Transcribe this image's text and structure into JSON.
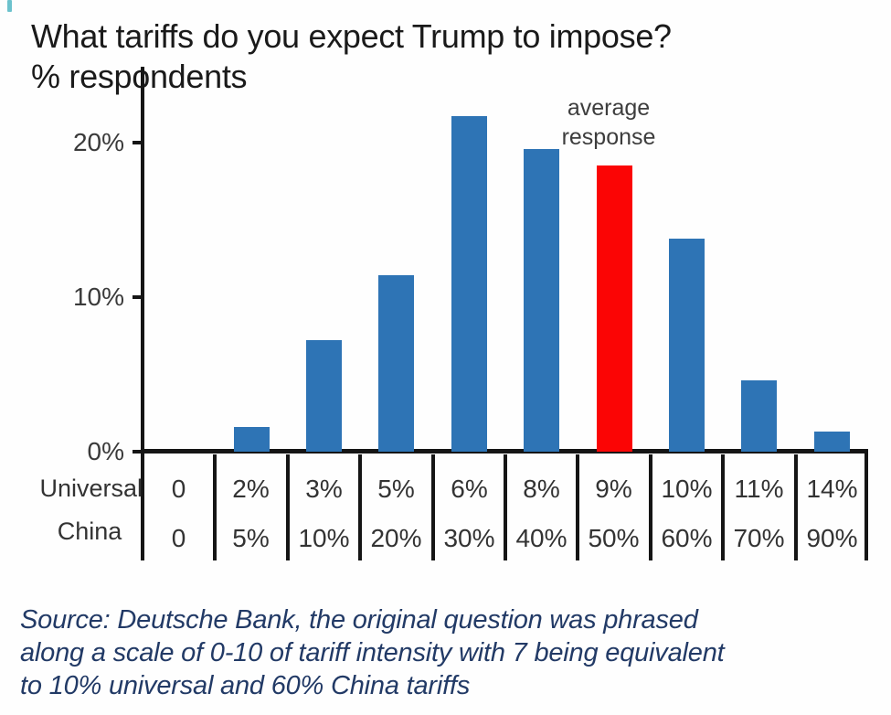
{
  "header": {
    "title": "What tariffs do you expect Trump to impose?",
    "subtitle": "% respondents"
  },
  "annotation": {
    "line1": "average",
    "line2": "response"
  },
  "chart_data": {
    "type": "bar",
    "title": "What tariffs do you expect Trump to impose?",
    "ylabel": "% respondents",
    "xlabel": "",
    "ylim": [
      0,
      23
    ],
    "grid": false,
    "legend_position": "none",
    "y_ticks": [
      {
        "label": "0%",
        "value": 0
      },
      {
        "label": "10%",
        "value": 10
      },
      {
        "label": "20%",
        "value": 20
      }
    ],
    "x_rows": [
      {
        "label": "Universal",
        "values": [
          "0",
          "2%",
          "3%",
          "5%",
          "6%",
          "8%",
          "9%",
          "10%",
          "11%",
          "14%"
        ]
      },
      {
        "label": "China",
        "values": [
          "0",
          "5%",
          "10%",
          "20%",
          "30%",
          "40%",
          "50%",
          "60%",
          "70%",
          "90%"
        ]
      }
    ],
    "series": [
      {
        "name": "% respondents",
        "values": [
          0,
          1.6,
          7.2,
          11.4,
          21.7,
          19.6,
          18.5,
          13.8,
          4.6,
          1.3
        ]
      }
    ],
    "highlight_index": 6,
    "annotation": {
      "text": "average response",
      "applies_to_column": 6
    },
    "colors": {
      "bar": "#2E74B5",
      "highlight": "#FB0505",
      "axis": "#151515"
    }
  },
  "source": {
    "line1": "Source: Deutsche Bank, the original question was phrased",
    "line2": "along a scale of 0-10 of tariff intensity with 7 being equivalent",
    "line3": "to 10% universal and 60% China tariffs"
  }
}
